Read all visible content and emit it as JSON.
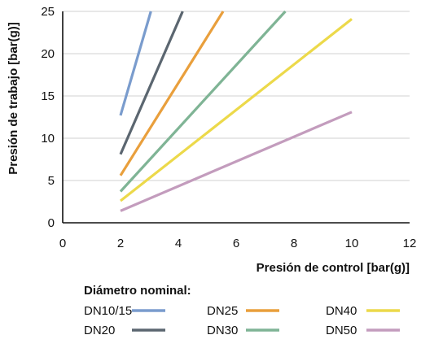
{
  "chart_data": {
    "type": "line",
    "xlabel": "Presión de control [bar(g)]",
    "ylabel": "Presión de trabajo [bar(g)]",
    "xlim": [
      0,
      12
    ],
    "ylim": [
      0,
      25
    ],
    "xticks": [
      0,
      2,
      4,
      6,
      8,
      10,
      12
    ],
    "yticks": [
      0,
      5,
      10,
      15,
      20,
      25
    ],
    "grid": "horizontal",
    "legend_title": "Diámetro nominal:",
    "legend_position": "bottom",
    "series": [
      {
        "name": "DN10/15",
        "color": "#7a9ccd",
        "x": [
          2,
          3.05
        ],
        "y": [
          12.7,
          25
        ]
      },
      {
        "name": "DN20",
        "color": "#5b6670",
        "x": [
          2,
          4.15
        ],
        "y": [
          8.1,
          25
        ]
      },
      {
        "name": "DN25",
        "color": "#e99f3c",
        "x": [
          2,
          5.55
        ],
        "y": [
          5.6,
          25
        ]
      },
      {
        "name": "DN30",
        "color": "#7fb495",
        "x": [
          2,
          7.7
        ],
        "y": [
          3.7,
          25
        ]
      },
      {
        "name": "DN40",
        "color": "#ecd94a",
        "x": [
          2,
          10
        ],
        "y": [
          2.6,
          24.1
        ]
      },
      {
        "name": "DN50",
        "color": "#c39cbd",
        "x": [
          2,
          10
        ],
        "y": [
          1.4,
          13.1
        ]
      }
    ]
  }
}
